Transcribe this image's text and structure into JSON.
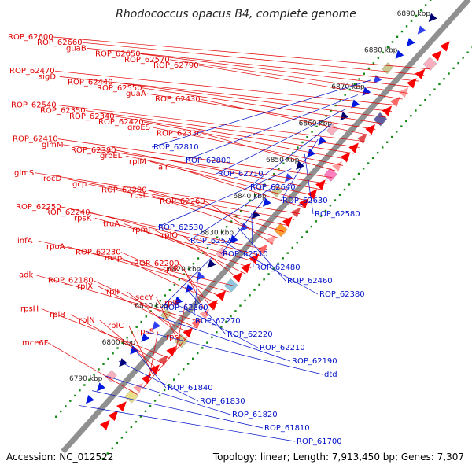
{
  "title": "Rhodococcus opacus B4, complete genome",
  "footer": {
    "accession": "Accession: NC_012522",
    "summary": "Topology: linear; Length: 7,913,450 bp; Genes: 7,307"
  },
  "colors": {
    "forward_label": "#e00000",
    "reverse_label": "#0010c8",
    "axis": "#909090",
    "forward_gene": "#ff0000",
    "reverse_gene": "#0018e0",
    "tick_dot": "#118811"
  },
  "kbp_ticks": [
    "6790 kbp",
    "6800 kbp",
    "6810 kbp",
    "6820 kbp",
    "6830 kbp",
    "6840 kbp",
    "6850 kbp",
    "6860 kbp",
    "6870 kbp",
    "6880 kbp",
    "6890 kbp"
  ],
  "forward_labels": [
    "ROP_62600",
    "ROP_62660",
    "guaB",
    "ROP_62650",
    "ROP_62570",
    "ROP_62790",
    "ROP_62470",
    "sigD",
    "ROP_62440",
    "ROP_62550",
    "guaA",
    "ROP_62430",
    "ROP_62540",
    "ROP_62350",
    "ROP_62340",
    "ROP_62420",
    "groES",
    "ROP_62330",
    "ROP_62410",
    "glmM",
    "ROP_62390",
    "groEL",
    "rplM",
    "alr",
    "glmS",
    "rocD",
    "gcp",
    "ROP_62280",
    "rpsI",
    "ROP_62260",
    "ROP_62250",
    "ROP_62240",
    "rpsK",
    "truA",
    "rpmJ",
    "rplQ",
    "infA",
    "rpoA",
    "ROP_62230",
    "map",
    "ROP_62200",
    "rplR",
    "adk",
    "ROP_62180",
    "rplX",
    "rplF",
    "secY",
    "rplP",
    "rpsH",
    "rplB",
    "rplN",
    "rplC",
    "rpsS",
    "rpsJ",
    "mce6F"
  ],
  "reverse_labels": [
    "ROP_62810",
    "ROP_62800",
    "ROP_62710",
    "ROP_62640",
    "ROP_62630",
    "ROP_62580",
    "ROP_62530",
    "ROP_62520",
    "ROP_62510",
    "ROP_62480",
    "ROP_62460",
    "ROP_62380",
    "ROP_62360",
    "ROP_62270",
    "ROP_62220",
    "ROP_62210",
    "ROP_62190",
    "dtd",
    "ROP_61840",
    "ROP_61830",
    "ROP_61820",
    "ROP_61810",
    "ROP_61700"
  ]
}
